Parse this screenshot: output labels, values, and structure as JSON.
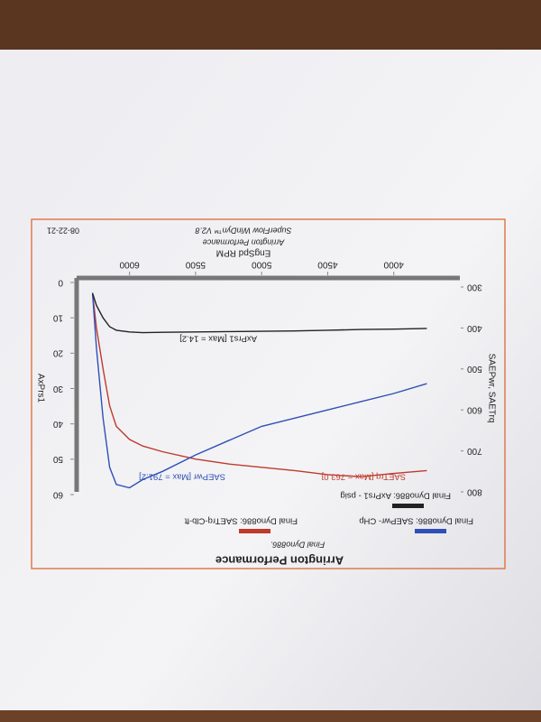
{
  "chart_data": {
    "type": "line",
    "title": "Arrington Performance",
    "subtitle": "Final Dyno886.",
    "xlabel": "EngSpd RPM",
    "ylabel": "SAEPwr, SAETrq",
    "y2label": "AxPrs1",
    "x": [
      3750,
      4000,
      4250,
      4500,
      4750,
      5000,
      5250,
      5500,
      5750,
      5900,
      6000,
      6100,
      6150,
      6200,
      6250,
      6280
    ],
    "series": [
      {
        "name": "Final Dyno886: SAETrq-Clb-ft",
        "color": "#c0392b",
        "values": [
          748,
          755,
          763,
          758,
          748,
          740,
          732,
          720,
          702,
          688,
          672,
          640,
          590,
          500,
          400,
          315
        ]
      },
      {
        "name": "Final Dyno886: SAEPwr- CHp",
        "color": "#2f4fb5",
        "values": [
          536,
          560,
          580,
          600,
          620,
          640,
          675,
          710,
          750,
          770,
          790,
          782,
          740,
          620,
          450,
          315
        ]
      },
      {
        "name": "Final Dyno886: AxPrs1 - psig",
        "color": "#222222",
        "axis": "y2",
        "values": [
          13.0,
          13.2,
          13.3,
          13.5,
          13.7,
          13.8,
          13.9,
          14.0,
          14.1,
          14.2,
          14.0,
          13.5,
          12.5,
          10,
          6.5,
          3
        ]
      }
    ],
    "annotations": [
      "SAETrq [Max = 763.0]",
      "SAEPwr [Max = 791.2]",
      "AxPrs1 [Max = 14.2]"
    ],
    "xlim": [
      3500,
      6400
    ],
    "xticks": [
      4000,
      4500,
      5000,
      5500,
      6000
    ],
    "ylim": [
      300,
      800
    ],
    "yticks": [
      300,
      400,
      500,
      600,
      700,
      800
    ],
    "y2lim": [
      0,
      60
    ],
    "y2ticks": [
      0,
      10,
      20,
      30,
      40,
      50,
      60
    ],
    "grid": false,
    "footer": [
      "Arrington Performance",
      "SuperFlow WinDyn™ V2.8",
      "08-22-21"
    ]
  }
}
